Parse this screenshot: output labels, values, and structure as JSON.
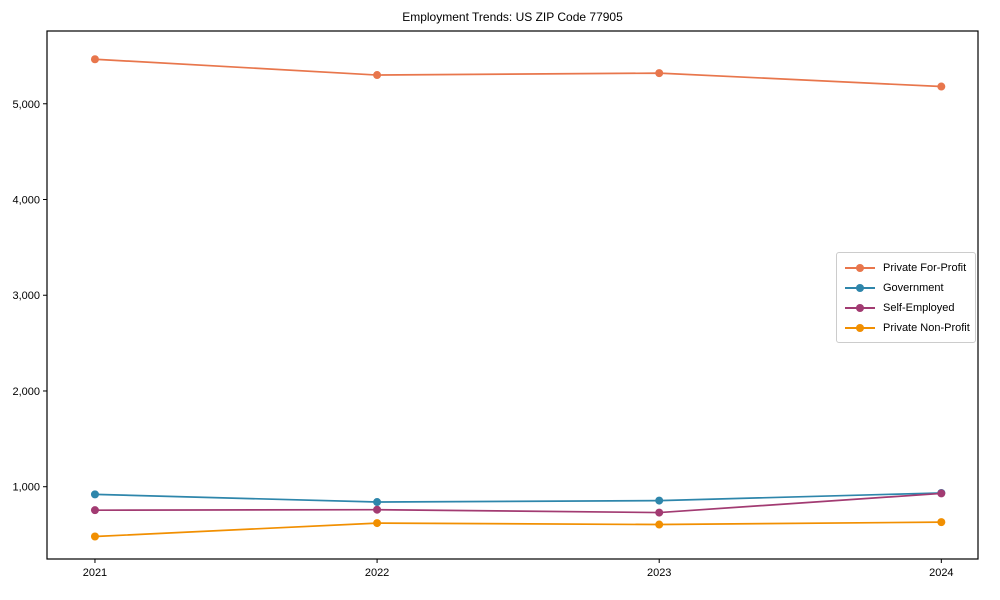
{
  "chart_data": {
    "type": "line",
    "title": "Employment Trends: US ZIP Code 77905",
    "xlabel": "",
    "ylabel": "",
    "categories": [
      2021,
      2022,
      2023,
      2024
    ],
    "x_tick_labels": [
      "2021",
      "2022",
      "2023",
      "2024"
    ],
    "y_ticks": [
      1000,
      2000,
      3000,
      4000,
      5000
    ],
    "y_tick_labels": [
      "1,000",
      "2,000",
      "3,000",
      "4,000",
      "5,000"
    ],
    "xlim": [
      2020.83,
      2024.13
    ],
    "ylim": [
      245,
      5760
    ],
    "grid": false,
    "legend_position": "center right",
    "series": [
      {
        "name": "Private For-Profit",
        "color": "#E8764C",
        "values": [
          5465,
          5300,
          5320,
          5180
        ]
      },
      {
        "name": "Government",
        "color": "#2E86AB",
        "values": [
          920,
          840,
          855,
          935
        ]
      },
      {
        "name": "Self-Employed",
        "color": "#A23B72",
        "values": [
          755,
          760,
          730,
          930
        ]
      },
      {
        "name": "Private Non-Profit",
        "color": "#F18F01",
        "values": [
          480,
          620,
          605,
          630
        ]
      }
    ]
  }
}
